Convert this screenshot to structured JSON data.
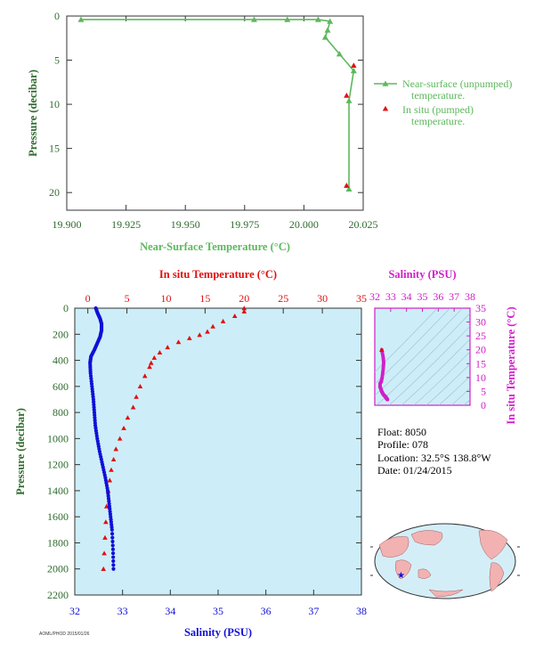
{
  "colors": {
    "green": "#5db85d",
    "axis_green": "#2f6b2f",
    "red": "#e01010",
    "blue": "#1010d8",
    "magenta": "#d020c8",
    "panel_fill": "#cdeef8",
    "land": "#f2b2b2",
    "ocean": "#d4eef8"
  },
  "chart_data": [
    {
      "type": "line",
      "xlabel": "Near-Surface Temperature (°C)",
      "ylabel": "Pressure (decibar)",
      "xlim": [
        19.9,
        20.025
      ],
      "ylim": [
        0,
        22
      ],
      "y_inverted": true,
      "xticks": [
        "19.900",
        "19.925",
        "19.950",
        "19.975",
        "20.000",
        "20.025"
      ],
      "yticks": [
        "0",
        "5",
        "10",
        "15",
        "20"
      ],
      "series": [
        {
          "name": "Near-surface (unpumped) temperature.",
          "marker": "triangle",
          "x": [
            19.906,
            19.979,
            19.993,
            20.006,
            20.011,
            20.01,
            20.009,
            20.015,
            20.021,
            20.019,
            20.019
          ],
          "y": [
            0.4,
            0.4,
            0.4,
            0.4,
            0.6,
            1.6,
            2.4,
            4.3,
            6.2,
            9.6,
            19.6
          ]
        },
        {
          "name": "In situ (pumped) temperature.",
          "marker": "triangle",
          "x": [
            20.021,
            20.018,
            20.018
          ],
          "y": [
            5.6,
            9.0,
            19.2
          ]
        }
      ],
      "legend": [
        "Near-surface (unpumped)",
        "temperature.",
        "In situ (pumped)",
        "temperature."
      ],
      "legend_position": "right"
    },
    {
      "type": "scatter",
      "title_top": "In situ Temperature (°C)",
      "xlabel": "Salinity (PSU)",
      "ylabel": "Pressure (decibar)",
      "temp_xlim": [
        -1.67,
        35
      ],
      "sal_xlim": [
        32,
        38
      ],
      "ylim": [
        0,
        2200
      ],
      "y_inverted": true,
      "temp_ticks": [
        "0",
        "5",
        "10",
        "15",
        "20",
        "25",
        "30",
        "35"
      ],
      "sal_ticks": [
        "32",
        "33",
        "34",
        "35",
        "36",
        "37",
        "38"
      ],
      "yticks": [
        "0",
        "200",
        "400",
        "600",
        "800",
        "1000",
        "1200",
        "1400",
        "1600",
        "1800",
        "2000",
        "2200"
      ],
      "series": [
        {
          "name": "In situ Temperature",
          "marker": "triangle",
          "x": [
            20.0,
            20.0,
            18.8,
            17.3,
            16.0,
            15.3,
            14.3,
            13.0,
            11.6,
            10.2,
            9.2,
            8.5,
            8.1,
            7.9,
            7.3,
            6.7,
            6.2,
            5.8,
            5.1,
            4.6,
            4.1,
            3.6,
            3.3,
            3.0,
            2.8,
            2.6,
            2.4,
            2.3,
            2.2,
            2.1,
            2.0
          ],
          "y": [
            0,
            25,
            60,
            100,
            140,
            180,
            205,
            230,
            260,
            300,
            340,
            380,
            420,
            450,
            520,
            600,
            680,
            760,
            840,
            920,
            1000,
            1080,
            1160,
            1240,
            1320,
            1400,
            1520,
            1640,
            1760,
            1880,
            2000
          ]
        },
        {
          "name": "Salinity",
          "marker": "dot",
          "x": [
            32.44,
            32.48,
            32.53,
            32.56,
            32.56,
            32.53,
            32.47,
            32.41,
            32.34,
            32.32,
            32.33,
            32.36,
            32.39,
            32.41,
            32.43,
            32.47,
            32.52,
            32.58,
            32.64,
            32.69,
            32.72,
            32.75,
            32.78,
            32.8,
            32.81
          ],
          "y": [
            0,
            40,
            80,
            120,
            170,
            220,
            270,
            320,
            370,
            420,
            500,
            600,
            700,
            800,
            900,
            1000,
            1100,
            1200,
            1300,
            1400,
            1500,
            1600,
            1700,
            1850,
            2000
          ]
        }
      ]
    },
    {
      "type": "scatter",
      "title": "Salinity (PSU)",
      "ylabel": "In situ Temperature (°C)",
      "xlim": [
        32,
        38
      ],
      "ylim": [
        0,
        35
      ],
      "xticks": [
        "32",
        "33",
        "34",
        "35",
        "36",
        "37",
        "38"
      ],
      "yticks": [
        "0",
        "5",
        "10",
        "15",
        "20",
        "25",
        "30",
        "35"
      ],
      "series": [
        {
          "name": "T-S",
          "x": [
            32.44,
            32.53,
            32.56,
            32.53,
            32.47,
            32.41,
            32.34,
            32.33,
            32.39,
            32.43,
            32.47,
            32.52,
            32.58,
            32.64,
            32.69,
            32.72,
            32.75,
            32.78,
            32.81
          ],
          "y": [
            20.0,
            17.3,
            15.3,
            13.0,
            10.2,
            8.5,
            7.9,
            6.7,
            5.8,
            5.1,
            4.6,
            4.1,
            3.6,
            3.3,
            3.0,
            2.6,
            2.4,
            2.2,
            2.0
          ]
        }
      ]
    }
  ],
  "float_info": {
    "float": "Float:  8050",
    "profile": "Profile:  078",
    "location": "Location:  32.5°S  138.8°W",
    "date": "Date:  01/24/2015"
  },
  "footer_code": "AOML/PHOD 2015/01/26"
}
